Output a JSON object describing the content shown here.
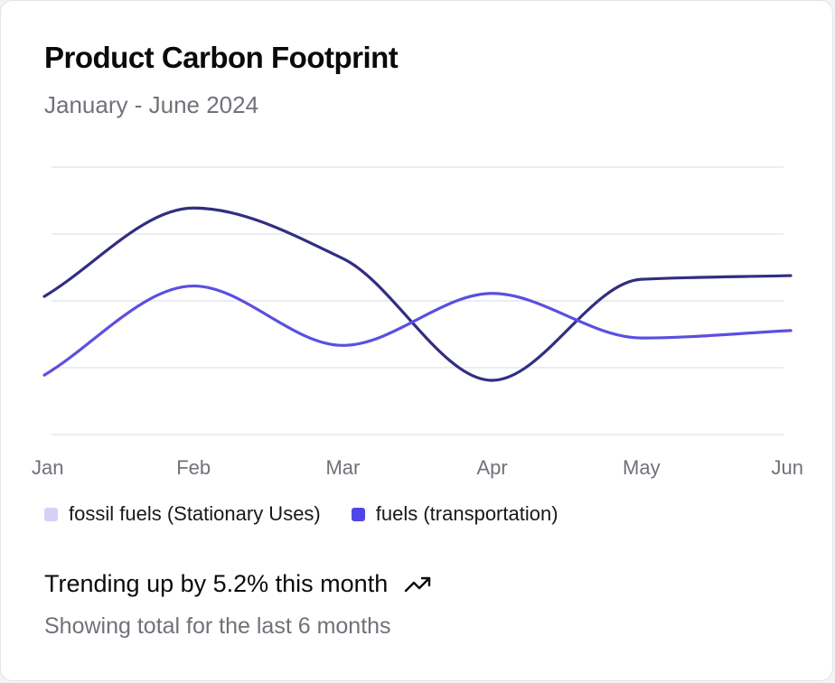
{
  "card": {
    "title": "Product Carbon Footprint",
    "subtitle": "January - June 2024",
    "trend_text": "Trending up by 5.2% this month",
    "trend_icon": "trending-up-icon",
    "footnote": "Showing total for the last 6 months"
  },
  "colors": {
    "fossil": "#d4d1f5",
    "transport": "#4f46e5",
    "transport_line": "#312e81",
    "fossil_line": "#5b4fe0",
    "grid": "#e5e7eb"
  },
  "chart_data": {
    "type": "line",
    "categories": [
      "Jan",
      "Feb",
      "Mar",
      "Apr",
      "May",
      "Jun"
    ],
    "series": [
      {
        "name": "fossil fuels (Stationary Uses)",
        "values": [
          186,
          305,
          237,
          73,
          209,
          214
        ]
      },
      {
        "name": "fuels (transportation)",
        "values": [
          80,
          200,
          120,
          190,
          130,
          140
        ]
      }
    ],
    "ylim": [
      0,
      360
    ],
    "grid": true,
    "legend": "bottom-left",
    "xlabel": "",
    "ylabel": ""
  }
}
